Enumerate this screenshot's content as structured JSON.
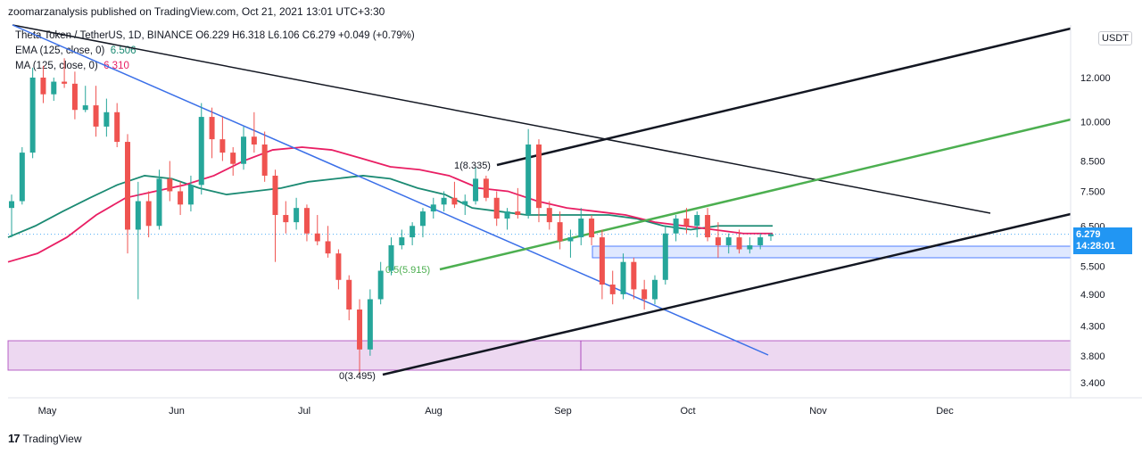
{
  "header": {
    "publisher": "zoomarzanalysis published on TradingView.com, Oct 21, 2021 13:01 UTC+3:30"
  },
  "legend": {
    "symbol_line": "Theta Token / TetherUS, 1D, BINANCE  O6.229  H6.318  L6.106  C6.279  +0.049 (+0.79%)",
    "ema_label": "EMA (125, close, 0)",
    "ema_value": "6.506",
    "ma_label": "MA (125, close, 0)",
    "ma_value": "6.310"
  },
  "axis_badge": "USDT",
  "price_label": {
    "price": "6.279",
    "countdown": "14:28:01"
  },
  "footer": {
    "brand": "TradingView"
  },
  "chart_data": {
    "type": "candlestick",
    "yaxis": {
      "scale": "log",
      "ticks": [
        12.0,
        10.0,
        8.5,
        7.5,
        6.5,
        5.5,
        4.9,
        4.3,
        3.8,
        3.4
      ],
      "tick_labels": [
        "12.000",
        "10.000",
        "8.500",
        "7.500",
        "6.500",
        "5.500",
        "4.900",
        "4.300",
        "3.800",
        "3.400"
      ]
    },
    "xaxis": {
      "ticks": [
        "May",
        "Jun",
        "Jul",
        "Aug",
        "Sep",
        "Oct",
        "Nov",
        "Dec"
      ]
    },
    "annotations": {
      "fib_top": "1(8.335)",
      "fib_mid": "0.5(5.915)",
      "fib_bottom": "0(3.495)"
    },
    "colors": {
      "up": "#26a69a",
      "down": "#ef5350",
      "ema": "#1b8a73",
      "ma": "#e91e63",
      "trend_blue": "#3a6fe8",
      "channel_green": "#4caf50",
      "zone_blue": "#2962ff",
      "zone_purple": "#9c27b0"
    },
    "candles": [
      [
        7.0,
        7.4,
        6.2,
        7.2
      ],
      [
        7.2,
        9.0,
        7.1,
        8.8
      ],
      [
        8.8,
        12.5,
        8.6,
        12.0
      ],
      [
        12.0,
        12.6,
        10.8,
        11.2
      ],
      [
        11.2,
        12.0,
        10.9,
        11.8
      ],
      [
        11.8,
        13.0,
        11.5,
        11.7
      ],
      [
        11.7,
        12.3,
        10.1,
        10.5
      ],
      [
        10.5,
        11.6,
        10.4,
        10.7
      ],
      [
        10.7,
        11.6,
        9.4,
        9.8
      ],
      [
        9.8,
        11.0,
        9.4,
        10.4
      ],
      [
        10.4,
        10.8,
        9.0,
        9.2
      ],
      [
        9.2,
        9.5,
        5.8,
        6.4
      ],
      [
        6.4,
        7.8,
        4.8,
        7.2
      ],
      [
        7.2,
        7.5,
        6.2,
        6.5
      ],
      [
        6.5,
        8.2,
        6.4,
        7.9
      ],
      [
        7.9,
        8.5,
        7.2,
        7.5
      ],
      [
        7.5,
        7.8,
        6.8,
        7.1
      ],
      [
        7.1,
        8.0,
        6.9,
        7.7
      ],
      [
        7.7,
        10.8,
        7.4,
        10.2
      ],
      [
        10.2,
        10.6,
        8.6,
        9.3
      ],
      [
        9.3,
        10.2,
        8.5,
        8.8
      ],
      [
        8.8,
        9.0,
        8.0,
        8.4
      ],
      [
        8.4,
        9.8,
        8.2,
        9.4
      ],
      [
        9.4,
        10.4,
        8.8,
        9.1
      ],
      [
        9.1,
        9.6,
        7.8,
        8.0
      ],
      [
        8.0,
        8.2,
        5.6,
        6.8
      ],
      [
        6.8,
        7.2,
        6.3,
        6.6
      ],
      [
        6.6,
        7.3,
        6.4,
        7.0
      ],
      [
        7.0,
        7.1,
        6.1,
        6.3
      ],
      [
        6.3,
        6.8,
        6.0,
        6.1
      ],
      [
        6.1,
        6.5,
        5.7,
        5.8
      ],
      [
        5.8,
        5.9,
        5.0,
        5.2
      ],
      [
        5.2,
        5.3,
        4.4,
        4.6
      ],
      [
        4.6,
        4.8,
        3.5,
        3.9
      ],
      [
        3.9,
        5.0,
        3.8,
        4.8
      ],
      [
        4.8,
        5.6,
        4.7,
        5.4
      ],
      [
        5.4,
        6.2,
        5.3,
        6.0
      ],
      [
        6.0,
        6.4,
        5.9,
        6.2
      ],
      [
        6.2,
        6.6,
        6.0,
        6.5
      ],
      [
        6.5,
        7.0,
        6.2,
        6.9
      ],
      [
        6.9,
        7.3,
        6.7,
        7.1
      ],
      [
        7.1,
        7.5,
        6.9,
        7.3
      ],
      [
        7.3,
        7.8,
        7.0,
        7.1
      ],
      [
        7.1,
        7.4,
        6.8,
        7.2
      ],
      [
        7.2,
        8.3,
        7.1,
        7.9
      ],
      [
        7.9,
        8.0,
        7.2,
        7.3
      ],
      [
        7.3,
        7.5,
        6.5,
        6.7
      ],
      [
        6.7,
        7.0,
        6.4,
        6.9
      ],
      [
        6.9,
        7.6,
        6.7,
        6.8
      ],
      [
        6.8,
        9.7,
        6.7,
        9.1
      ],
      [
        9.1,
        9.3,
        6.6,
        7.0
      ],
      [
        7.0,
        7.2,
        6.4,
        6.6
      ],
      [
        6.6,
        6.9,
        5.9,
        6.1
      ],
      [
        6.1,
        6.4,
        5.7,
        6.2
      ],
      [
        6.2,
        7.0,
        6.0,
        6.7
      ],
      [
        6.7,
        6.8,
        6.0,
        6.2
      ],
      [
        6.2,
        6.4,
        4.8,
        5.1
      ],
      [
        5.1,
        5.4,
        4.7,
        4.9
      ],
      [
        4.9,
        5.8,
        4.8,
        5.6
      ],
      [
        5.6,
        5.7,
        4.8,
        5.0
      ],
      [
        5.0,
        5.2,
        4.6,
        4.8
      ],
      [
        4.8,
        5.3,
        4.7,
        5.2
      ],
      [
        5.2,
        6.5,
        5.1,
        6.3
      ],
      [
        6.3,
        6.8,
        6.1,
        6.7
      ],
      [
        6.7,
        7.0,
        6.3,
        6.5
      ],
      [
        6.5,
        6.9,
        6.2,
        6.8
      ],
      [
        6.8,
        7.0,
        6.1,
        6.2
      ],
      [
        6.2,
        6.6,
        5.7,
        6.0
      ],
      [
        6.0,
        6.3,
        5.8,
        6.2
      ],
      [
        6.2,
        6.4,
        5.8,
        5.9
      ],
      [
        5.9,
        6.2,
        5.8,
        6.0
      ],
      [
        6.0,
        6.3,
        5.9,
        6.2
      ],
      [
        6.23,
        6.32,
        6.11,
        6.28
      ]
    ],
    "ema": [
      6.2,
      6.5,
      6.9,
      7.3,
      7.7,
      8.0,
      7.9,
      7.6,
      7.4,
      7.5,
      7.6,
      7.8,
      7.9,
      8.0,
      7.9,
      7.6,
      7.4,
      7.0,
      6.9,
      6.8,
      6.8,
      6.8,
      6.8,
      6.7,
      6.5,
      6.4,
      6.5,
      6.5,
      6.5
    ],
    "ma": [
      5.6,
      5.8,
      6.2,
      6.8,
      7.3,
      7.5,
      7.7,
      8.0,
      8.5,
      8.9,
      9.0,
      8.9,
      8.6,
      8.3,
      8.2,
      8.0,
      7.6,
      7.5,
      7.2,
      7.0,
      6.9,
      6.8,
      6.6,
      6.5,
      6.4,
      6.3,
      6.3
    ]
  }
}
